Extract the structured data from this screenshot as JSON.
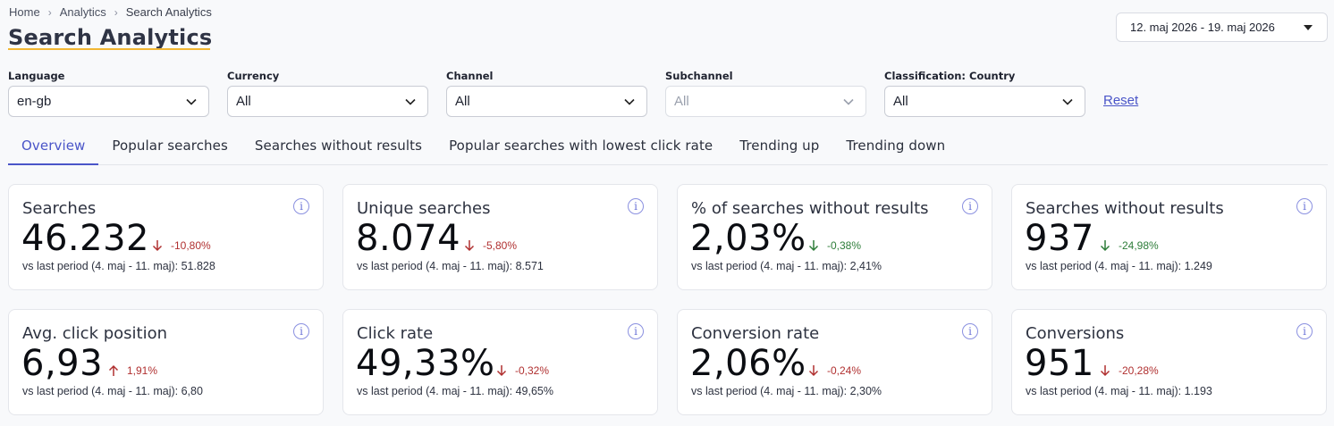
{
  "breadcrumb": {
    "home": "Home",
    "analytics": "Analytics",
    "current": "Search Analytics"
  },
  "page_title": "Search Analytics",
  "date_range": "12. maj 2026 - 19. maj 2026",
  "filters": [
    {
      "label": "Language",
      "value": "en-gb",
      "disabled": false
    },
    {
      "label": "Currency",
      "value": "All",
      "disabled": false
    },
    {
      "label": "Channel",
      "value": "All",
      "disabled": false
    },
    {
      "label": "Subchannel",
      "value": "All",
      "disabled": true
    },
    {
      "label": "Classification: Country",
      "value": "All",
      "disabled": false
    }
  ],
  "reset_label": "Reset",
  "tabs": [
    {
      "label": "Overview",
      "active": true
    },
    {
      "label": "Popular searches"
    },
    {
      "label": "Searches without results"
    },
    {
      "label": "Popular searches with lowest click rate"
    },
    {
      "label": "Trending up"
    },
    {
      "label": "Trending down"
    }
  ],
  "info_glyph": "i",
  "cards": [
    {
      "title": "Searches",
      "value": "46.232",
      "delta": "-10,80%",
      "direction": "down",
      "sentiment": "bad",
      "compare": "vs last period (4. maj - 11. maj): 51.828"
    },
    {
      "title": "Unique searches",
      "value": "8.074",
      "delta": "-5,80%",
      "direction": "down",
      "sentiment": "bad",
      "compare": "vs last period (4. maj - 11. maj): 8.571"
    },
    {
      "title": "% of searches without results",
      "value": "2,03%",
      "delta": "-0,38%",
      "direction": "down",
      "sentiment": "good",
      "compare": "vs last period (4. maj - 11. maj): 2,41%"
    },
    {
      "title": "Searches without results",
      "value": "937",
      "delta": "-24,98%",
      "direction": "down",
      "sentiment": "good",
      "compare": "vs last period (4. maj - 11. maj): 1.249"
    },
    {
      "title": "Avg. click position",
      "value": "6,93",
      "delta": "1,91%",
      "direction": "up",
      "sentiment": "bad",
      "compare": "vs last period (4. maj - 11. maj): 6,80"
    },
    {
      "title": "Click rate",
      "value": "49,33%",
      "delta": "-0,32%",
      "direction": "down",
      "sentiment": "bad",
      "compare": "vs last period (4. maj - 11. maj): 49,65%"
    },
    {
      "title": "Conversion rate",
      "value": "2,06%",
      "delta": "-0,24%",
      "direction": "down",
      "sentiment": "bad",
      "compare": "vs last period (4. maj - 11. maj): 2,30%"
    },
    {
      "title": "Conversions",
      "value": "951",
      "delta": "-20,28%",
      "direction": "down",
      "sentiment": "bad",
      "compare": "vs last period (4. maj - 11. maj): 1.193"
    }
  ],
  "colors": {
    "accent": "#4a55c8",
    "title_underline": "#f2b632",
    "negative": "#b03030",
    "positive": "#2e7d3a"
  }
}
